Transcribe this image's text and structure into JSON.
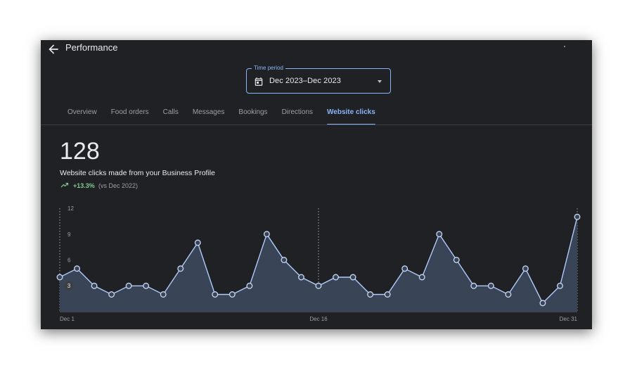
{
  "header": {
    "title": "Performance",
    "back_icon": "arrow-back-icon"
  },
  "time_period": {
    "label": "Time period",
    "value": "Dec 2023–Dec 2023",
    "icon": "calendar-icon"
  },
  "tabs": [
    {
      "label": "Overview",
      "active": false
    },
    {
      "label": "Food orders",
      "active": false
    },
    {
      "label": "Calls",
      "active": false
    },
    {
      "label": "Messages",
      "active": false
    },
    {
      "label": "Bookings",
      "active": false
    },
    {
      "label": "Directions",
      "active": false
    },
    {
      "label": "Website clicks",
      "active": true
    }
  ],
  "summary": {
    "total": "128",
    "description": "Website clicks made from your Business Profile",
    "change": "+13.3%",
    "comparison": "(vs Dec 2022)",
    "trend_icon": "trending-up-icon"
  },
  "colors": {
    "background": "#202124",
    "accent": "#8ab4f8",
    "positive": "#81c995",
    "series_line": "#aecbfa",
    "series_fill": "#3a4457"
  },
  "chart_data": {
    "type": "area",
    "x": [
      "Dec 1",
      "Dec 2",
      "Dec 3",
      "Dec 4",
      "Dec 5",
      "Dec 6",
      "Dec 7",
      "Dec 8",
      "Dec 9",
      "Dec 10",
      "Dec 11",
      "Dec 12",
      "Dec 13",
      "Dec 14",
      "Dec 15",
      "Dec 16",
      "Dec 17",
      "Dec 18",
      "Dec 19",
      "Dec 20",
      "Dec 21",
      "Dec 22",
      "Dec 23",
      "Dec 24",
      "Dec 25",
      "Dec 26",
      "Dec 27",
      "Dec 28",
      "Dec 29",
      "Dec 30",
      "Dec 31"
    ],
    "x_tick_labels": [
      "Dec 1",
      "Dec 16",
      "Dec 31"
    ],
    "y_tick_labels": [
      "12",
      "9",
      "6",
      "3"
    ],
    "values": [
      4,
      5,
      3,
      2,
      3,
      3,
      2,
      5,
      8,
      2,
      2,
      3,
      9,
      6,
      4,
      3,
      4,
      4,
      2,
      2,
      5,
      4,
      9,
      6,
      3,
      3,
      2,
      5,
      1,
      3,
      11
    ],
    "ylim": [
      0,
      12
    ],
    "hover_value": "3",
    "grid": false,
    "reference_lines_at": [
      "Dec 1",
      "Dec 16",
      "Dec 31"
    ]
  }
}
